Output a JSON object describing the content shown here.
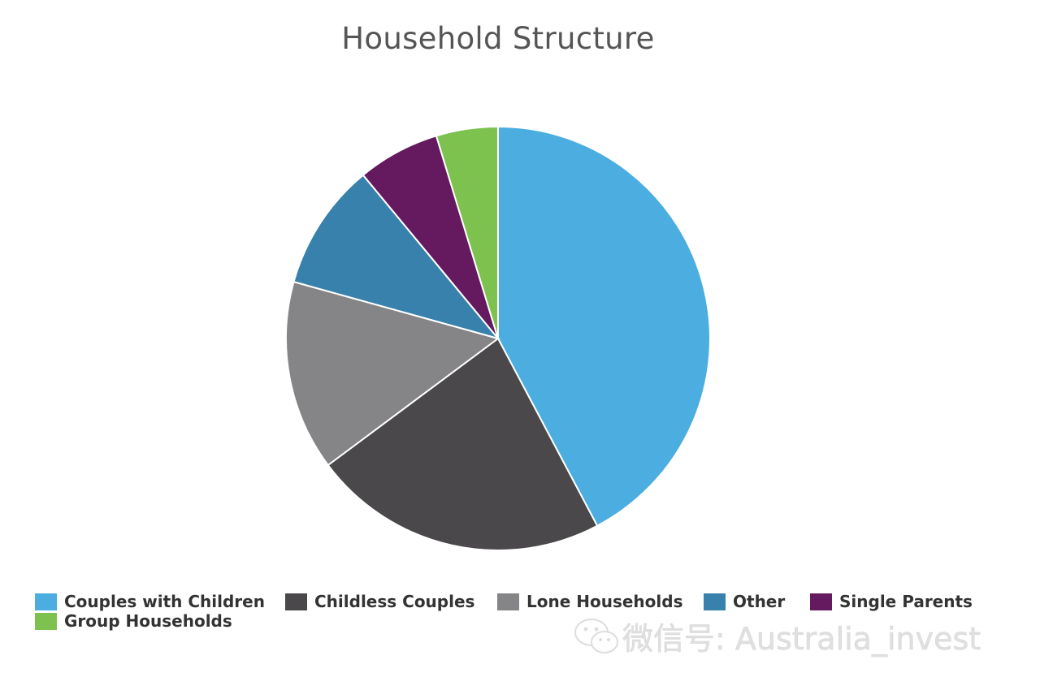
{
  "chart_data": {
    "type": "pie",
    "title": "Household Structure",
    "slices": [
      {
        "name": "Couples with Children",
        "value": 43.1,
        "color": "#4BADE0"
      },
      {
        "name": "Childless Couples",
        "value": 23.0,
        "color": "#4A484A"
      },
      {
        "name": "Lone Households",
        "value": 14.8,
        "color": "#858587"
      },
      {
        "name": "Other",
        "value": 9.9,
        "color": "#3881AC"
      },
      {
        "name": "Single Parents",
        "value": 6.4,
        "color": "#651A5F"
      },
      {
        "name": "Group Households",
        "value": 4.8,
        "color": "#7DC24F"
      }
    ],
    "legend_position": "bottom"
  },
  "watermark": {
    "text": "微信号: Australia_invest",
    "icon": "wechat-icon"
  }
}
